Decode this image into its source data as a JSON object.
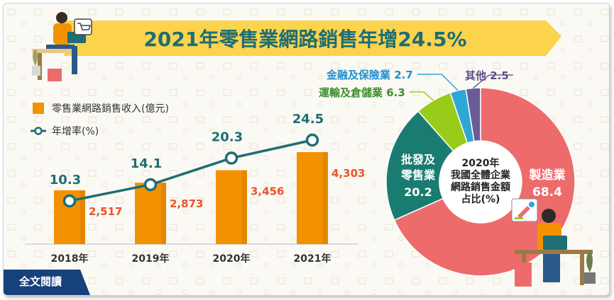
{
  "title": "2021年零售業網路銷售年增24.5%",
  "legend": {
    "bar": "零售業網路銷售收入(億元)",
    "line": "年增率(%)"
  },
  "read_full_label": "全文閱讀",
  "colors": {
    "bar": "#f39200",
    "bar_label": "#e8542b",
    "line": "#1e6e73",
    "banner": "#fcd34d",
    "frame_bg": "#fbf9f3"
  },
  "icons": [
    "person-with-laptop-illustration",
    "cart-icon",
    "plant-pot-illustration",
    "rocket-report-icon"
  ],
  "chart_data": [
    {
      "type": "bar",
      "categories": [
        "2018年",
        "2019年",
        "2020年",
        "2021年"
      ],
      "series": [
        {
          "name": "零售業網路銷售收入(億元)",
          "values": [
            2517,
            2873,
            3456,
            4303
          ],
          "labels": [
            "2,517",
            "2,873",
            "3,456",
            "4,303"
          ]
        },
        {
          "name": "年增率(%)",
          "type": "line",
          "values": [
            10.3,
            14.1,
            20.3,
            24.5
          ],
          "labels": [
            "10.3",
            "14.1",
            "20.3",
            "24.5"
          ]
        }
      ],
      "grid": false
    },
    {
      "type": "pie",
      "donut": true,
      "center_label": [
        "2020年",
        "我國全體企業",
        "網路銷售金額",
        "占比(%)"
      ],
      "slices": [
        {
          "label": "製造業",
          "value": 68.4,
          "color": "#ee6b6b",
          "text": "#ffffff"
        },
        {
          "label": "批發及零售業",
          "lines": [
            "批發及",
            "零售業"
          ],
          "value": 20.2,
          "color": "#1a7c70",
          "text": "#ffffff"
        },
        {
          "label": "運輸及倉儲業",
          "value": 6.3,
          "color": "#99cc1a",
          "text": "#3a8f2c"
        },
        {
          "label": "金融及保險業",
          "value": 2.7,
          "color": "#2fa6d8",
          "text": "#1f8fd0"
        },
        {
          "label": "其他",
          "value": 2.5,
          "color": "#6a5d95",
          "text": "#5a4f8a"
        }
      ]
    }
  ]
}
